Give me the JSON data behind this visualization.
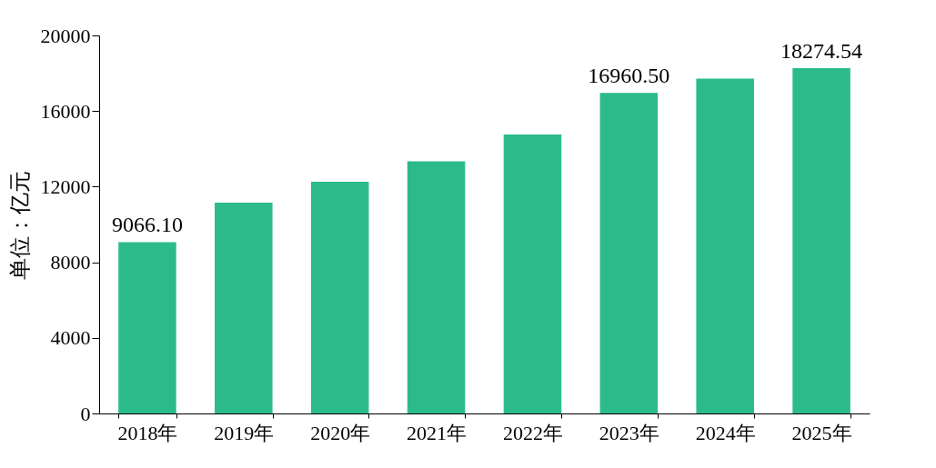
{
  "chart_data": {
    "type": "bar",
    "ylabel": "单位：亿元",
    "categories": [
      "2018年",
      "2019年",
      "2020年",
      "2021年",
      "2022年",
      "2023年",
      "2024年",
      "2025年"
    ],
    "values": [
      9066.1,
      11150,
      12260,
      13340,
      14760,
      16960.5,
      17720,
      18274.54
    ],
    "value_labels": [
      "9066.10",
      null,
      null,
      null,
      null,
      "16960.50",
      null,
      "18274.54"
    ],
    "color": "#2bbb8a",
    "ylim": [
      0,
      20000
    ],
    "yticks": [
      0,
      4000,
      8000,
      12000,
      16000,
      20000
    ],
    "grid": false
  }
}
